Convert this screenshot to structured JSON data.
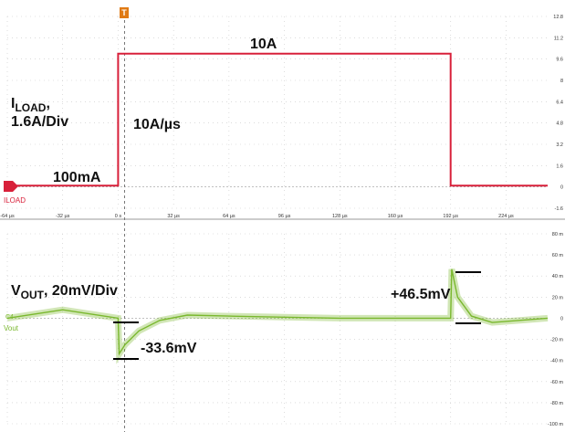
{
  "chart_data": [
    {
      "type": "line",
      "channel_label": "ILOAD",
      "x_tick_labels": [
        "-64 µs",
        "-32 µs",
        "0 s",
        "32 µs",
        "64 µs",
        "96 µs",
        "128 µs",
        "160 µs",
        "192 µs",
        "224 µs"
      ],
      "x_unit": "µs",
      "xlim": [
        -64,
        248
      ],
      "y_tick_labels": [
        "12.8",
        "11.2",
        "9.6",
        "8",
        "6.4",
        "4.8",
        "3.2",
        "1.6",
        "0",
        "-1.6"
      ],
      "ylim": [
        -1.6,
        12.8
      ],
      "grid": true,
      "color": "#d8203a",
      "series": [
        {
          "x": [
            -64,
            0,
            0,
            8,
            100,
            192,
            192,
            200,
            248
          ],
          "y": [
            0.1,
            0.1,
            10,
            10,
            10,
            10,
            0.1,
            0.1,
            0.1
          ]
        }
      ],
      "annotations": {
        "ylabel_main": "I",
        "ylabel_sub": "LOAD",
        "ylabel_suffix": ",",
        "ylabel_scale": "1.6A/Div",
        "high_level": "10A",
        "low_level": "100mA",
        "slew_rate": "10A/µs"
      }
    },
    {
      "type": "line",
      "channel_label": "Vout",
      "channel_id": "C4",
      "y_tick_labels": [
        "80 m",
        "60 m",
        "40 m",
        "20 m",
        "0",
        "-20 m",
        "-40 m",
        "-60 m",
        "-80 m",
        "-100 m"
      ],
      "ylim": [
        -100,
        80
      ],
      "y_unit": "mV",
      "grid": true,
      "color": "#7ab82e",
      "series": [
        {
          "x": [
            -64,
            -48,
            -32,
            -16,
            0,
            0.6,
            4,
            12,
            24,
            40,
            64,
            96,
            128,
            160,
            190,
            192,
            192.6,
            196,
            204,
            216,
            248
          ],
          "y": [
            0,
            4,
            8,
            4,
            0,
            -33.6,
            -25,
            -12,
            -2,
            3,
            2,
            1,
            0,
            0,
            0,
            0,
            46.5,
            20,
            2,
            -4,
            0
          ]
        }
      ],
      "annotations": {
        "ylabel_main": "V",
        "ylabel_sub": "OUT",
        "ylabel_suffix": ", 20mV/Div",
        "undershoot": "-33.6mV",
        "overshoot": "+46.5mV"
      }
    }
  ],
  "trigger_marker": "T"
}
